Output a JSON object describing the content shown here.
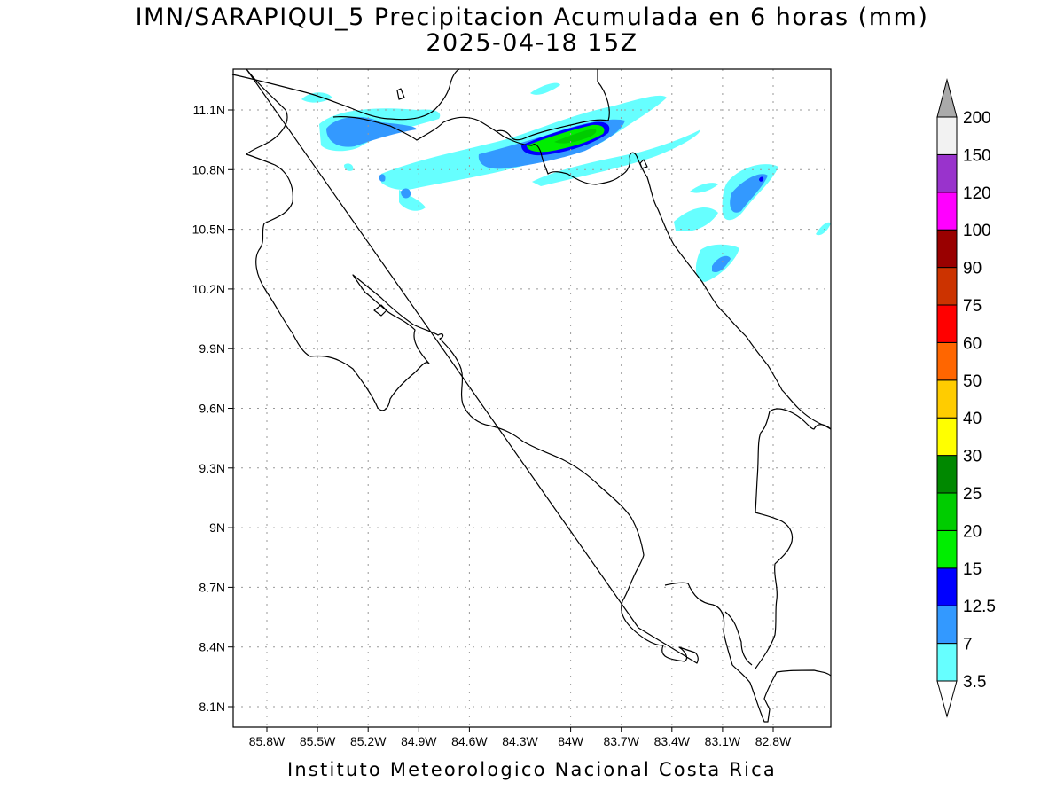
{
  "title": {
    "line1": "IMN/SARAPIQUI_5 Precipitacion Acumulada en 6 horas (mm)",
    "line2": "2025-04-18 15Z"
  },
  "footer": "Instituto Meteorologico Nacional Costa Rica",
  "map": {
    "lat_ticks": [
      "11.1N",
      "10.8N",
      "10.5N",
      "10.2N",
      "9.9N",
      "9.6N",
      "9.3N",
      "9N",
      "8.7N",
      "8.4N",
      "8.1N"
    ],
    "lon_ticks": [
      "85.8W",
      "85.5W",
      "85.2W",
      "84.9W",
      "84.6W",
      "84.3W",
      "84W",
      "83.7W",
      "83.4W",
      "83.1W",
      "82.8W"
    ],
    "grid": true
  },
  "colorbar": {
    "units": "mm",
    "levels": [
      "3.5",
      "7",
      "12.5",
      "15",
      "20",
      "25",
      "30",
      "40",
      "50",
      "60",
      "75",
      "90",
      "100",
      "120",
      "150",
      "200"
    ],
    "colors": [
      "#66ffff",
      "#3399ff",
      "#0000ff",
      "#00ee00",
      "#00cc00",
      "#008800",
      "#ffff00",
      "#ffcc00",
      "#ff6600",
      "#ff0000",
      "#cc3300",
      "#990000",
      "#ff00ff",
      "#9933cc",
      "#f2f2f2"
    ],
    "below_color": "#ffffff",
    "above_color": "#aaaaaa"
  }
}
